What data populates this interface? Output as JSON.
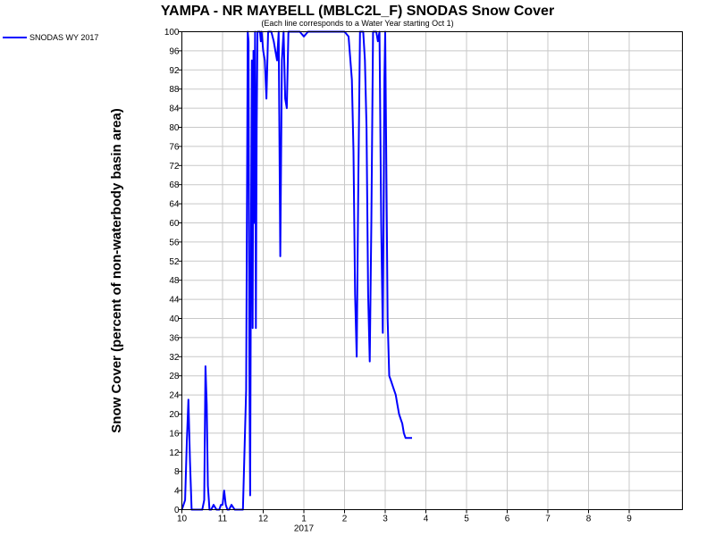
{
  "chart_data": {
    "type": "line",
    "title": "YAMPA - NR MAYBELL (MBLC2L_F) SNODAS Snow Cover",
    "subtitle": "(Each line corresponds to a Water Year starting Oct 1)",
    "ylabel": "Snow Cover (percent of non-waterbody basin area)",
    "ylim": [
      0,
      100
    ],
    "ytick_step": 4,
    "xlim": [
      0,
      12.4
    ],
    "xticks": [
      {
        "pos": 0,
        "label": "10"
      },
      {
        "pos": 1,
        "label": "11"
      },
      {
        "pos": 2,
        "label": "12"
      },
      {
        "pos": 3,
        "label": "1"
      },
      {
        "pos": 4,
        "label": "2"
      },
      {
        "pos": 5,
        "label": "3"
      },
      {
        "pos": 6,
        "label": "4"
      },
      {
        "pos": 7,
        "label": "5"
      },
      {
        "pos": 8,
        "label": "6"
      },
      {
        "pos": 9,
        "label": "7"
      },
      {
        "pos": 10,
        "label": "8"
      },
      {
        "pos": 11,
        "label": "9"
      }
    ],
    "year_label": {
      "pos": 3,
      "label": "2017"
    },
    "grid": true,
    "legend": "top-left",
    "series": [
      {
        "name": "SNODAS WY 2017",
        "color": "#0000ff",
        "x": [
          0,
          0.08,
          0.12,
          0.16,
          0.2,
          0.24,
          0.28,
          0.5,
          0.55,
          0.58,
          0.61,
          0.64,
          0.68,
          0.72,
          0.78,
          0.85,
          0.92,
          0.96,
          1.0,
          1.04,
          1.08,
          1.12,
          1.16,
          1.22,
          1.3,
          1.4,
          1.5,
          1.58,
          1.62,
          1.64,
          1.66,
          1.68,
          1.7,
          1.72,
          1.74,
          1.76,
          1.78,
          1.8,
          1.82,
          1.84,
          1.86,
          1.88,
          1.9,
          1.92,
          1.94,
          1.96,
          1.98,
          2.0,
          2.04,
          2.08,
          2.12,
          2.16,
          2.2,
          2.26,
          2.3,
          2.34,
          2.38,
          2.42,
          2.46,
          2.5,
          2.54,
          2.58,
          2.62,
          2.66,
          2.7,
          2.74,
          2.8,
          2.9,
          3.0,
          3.1,
          3.2,
          3.3,
          3.4,
          3.6,
          3.8,
          4.0,
          4.1,
          4.18,
          4.22,
          4.26,
          4.3,
          4.34,
          4.38,
          4.42,
          4.46,
          4.5,
          4.54,
          4.58,
          4.62,
          4.66,
          4.7,
          4.74,
          4.78,
          4.82,
          4.86,
          4.9,
          4.94,
          4.98,
          5.0,
          5.02,
          5.06,
          5.1,
          5.14,
          5.18,
          5.22,
          5.26,
          5.3,
          5.34,
          5.38,
          5.42,
          5.46,
          5.5,
          5.54,
          5.58,
          5.62,
          5.66
        ],
        "y": [
          0,
          2,
          14,
          23,
          10,
          0,
          0,
          0,
          2,
          30,
          22,
          5,
          0,
          0,
          1,
          0,
          0,
          1,
          1,
          4,
          1,
          0,
          0,
          1,
          0,
          0,
          0,
          25,
          100,
          98,
          30,
          3,
          60,
          94,
          38,
          96,
          60,
          100,
          38,
          80,
          100,
          100,
          100,
          100,
          98,
          100,
          98,
          96,
          94,
          86,
          100,
          100,
          100,
          98,
          96,
          94,
          100,
          53,
          94,
          100,
          86,
          84,
          100,
          100,
          100,
          100,
          100,
          100,
          99,
          100,
          100,
          100,
          100,
          100,
          100,
          100,
          99,
          90,
          75,
          45,
          32,
          70,
          100,
          100,
          100,
          94,
          80,
          45,
          31,
          60,
          100,
          100,
          100,
          98,
          100,
          60,
          37,
          90,
          100,
          80,
          40,
          28,
          27,
          26,
          25,
          24,
          22,
          20,
          19,
          18,
          16,
          15,
          15,
          15,
          15,
          15
        ]
      }
    ]
  }
}
